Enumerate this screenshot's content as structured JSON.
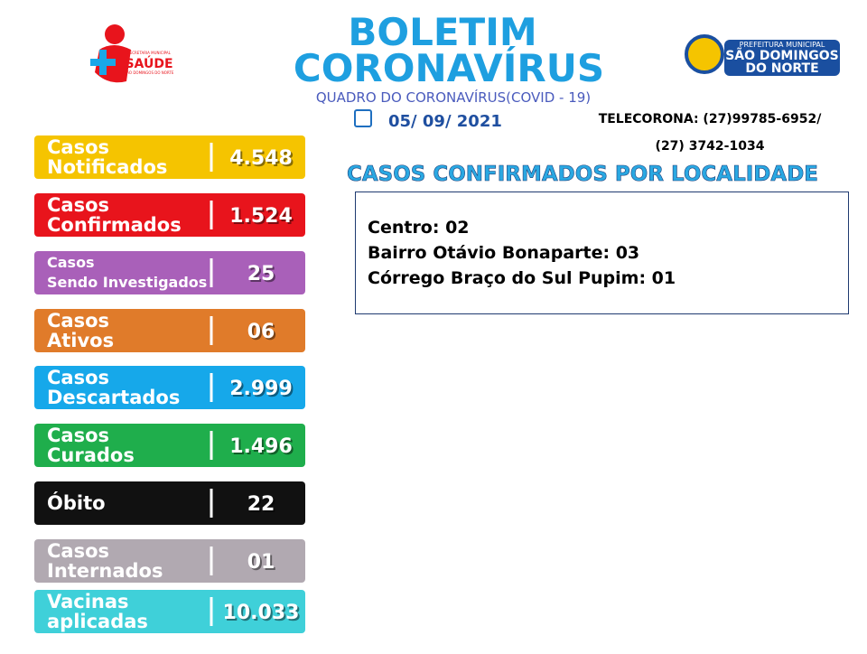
{
  "header": {
    "title_line1": "BOLETIM",
    "title_line2": "CORONAVÍRUS",
    "subtitle": "QUADRO DO CORONAVÍRUS(COVID - 19)",
    "date": "05/ 09/ 2021",
    "phone_line1": "TELECORONA: (27)99785-6952/",
    "phone_line2": "(27) 3742-1034"
  },
  "left_logo": {
    "top": "SECRETARIA MUNICIPAL",
    "name": "SAÚDE",
    "bottom": "SÃO DOMINGOS DO NORTE"
  },
  "right_logo": {
    "top": "PREFEITURA MUNICIPAL",
    "line1": "SÃO DOMINGOS",
    "line2": "DO NORTE"
  },
  "cards": [
    {
      "label": [
        "Casos",
        "Notificados"
      ],
      "value": "4.548",
      "color": "#f5c400"
    },
    {
      "label": [
        "Casos",
        "Confirmados"
      ],
      "value": "1.524",
      "color": "#e8141c"
    },
    {
      "label": [
        "Casos",
        "Sendo Investigados"
      ],
      "value": "25",
      "color": "#a960b9"
    },
    {
      "label": [
        "Casos",
        "Ativos"
      ],
      "value": "06",
      "color": "#e07b2a"
    },
    {
      "label": [
        "Casos",
        "Descartados"
      ],
      "value": "2.999",
      "color": "#16a8ea"
    },
    {
      "label": [
        "Casos",
        "Curados"
      ],
      "value": "1.496",
      "color": "#1fae4c"
    },
    {
      "label": [
        "Óbito"
      ],
      "value": "22",
      "color": "#111111"
    },
    {
      "label": [
        "Casos",
        "Internados"
      ],
      "value": "01",
      "color": "#b1a9b1"
    },
    {
      "label": [
        "Vacinas",
        "aplicadas"
      ],
      "value": "10.033",
      "color": "#3fd0d9"
    }
  ],
  "localities": {
    "title": "CASOS CONFIRMADOS POR LOCALIDADE",
    "items": [
      "Centro: 02",
      "Bairro Otávio Bonaparte: 03",
      "Córrego Braço do Sul Pupim: 01"
    ]
  }
}
